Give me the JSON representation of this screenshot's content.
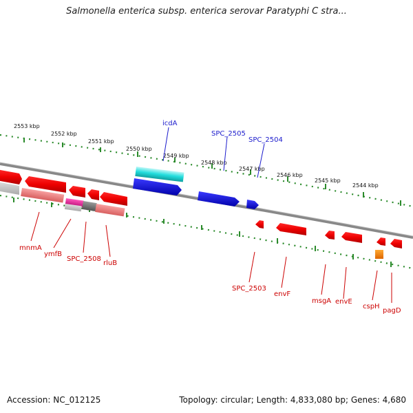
{
  "title": "Salmonella enterica subsp. enterica serovar Paratyphi C stra...",
  "footer": {
    "accession": "Accession: NC_012125",
    "stats": "Topology: circular; Length: 4,833,080 bp; Genes: 4,680"
  },
  "colors": {
    "forward_gene": "#ee0000",
    "forward_label": "#cc0000",
    "pseudo_gene": "#f08080",
    "blue_gene": "#1010dd",
    "blue_label": "#1a1acc",
    "cyan_gene": "#22dddd",
    "magenta_gene": "#dd2299",
    "gray_gene": "#888888",
    "orange_gene": "#ff8800",
    "ruler": "#2a8a2a",
    "backbone": "#888888"
  },
  "ruler_labels": [
    "2553 kbp",
    "2552 kbp",
    "2551 kbp",
    "2550 kbp",
    "2549 kbp",
    "2548 kbp",
    "2547 kbp",
    "2546 kbp",
    "2545 kbp",
    "2544 kbp"
  ],
  "gene_labels_top": [
    "icdA",
    "SPC_2505",
    "SPC_2504"
  ],
  "gene_labels_bottom": [
    "mnmA",
    "ymfB",
    "SPC_2508",
    "rluB",
    "SPC_2503",
    "envF",
    "msgA",
    "envE",
    "cspH",
    "pagD"
  ]
}
